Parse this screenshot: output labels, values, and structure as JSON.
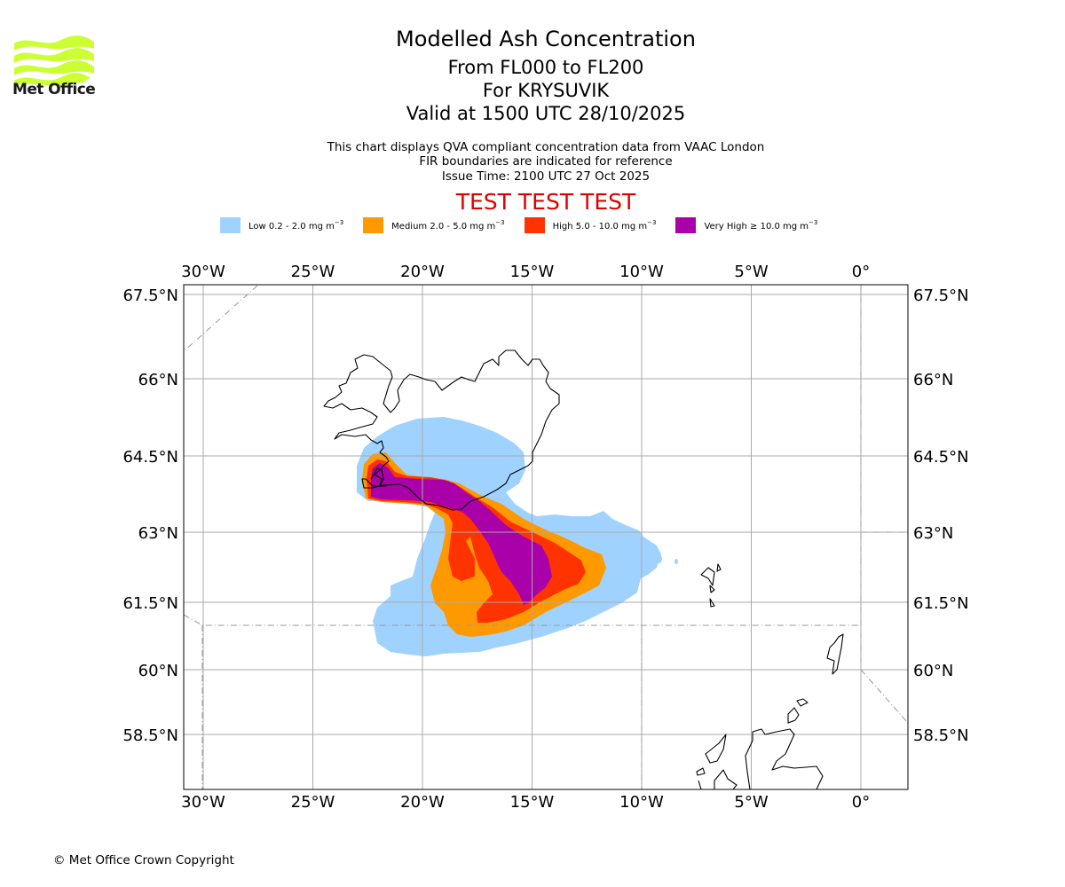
{
  "logo": {
    "icon": "met-office-wave-logo-icon",
    "text": "Met Office",
    "color": "#ccff33"
  },
  "titles": {
    "main": "Modelled Ash Concentration",
    "flight_levels": "From FL000 to FL200",
    "volcano": "For KRYSUVIK",
    "valid": "Valid at 1500 UTC 28/10/2025"
  },
  "subtitles": {
    "line1": "This chart displays QVA compliant concentration data from VAAC London",
    "line2": "FIR boundaries are indicated for reference",
    "line3": "Issue Time: 2100 UTC 27 Oct 2025"
  },
  "banner": {
    "text": "TEST TEST TEST",
    "color": "#e00000"
  },
  "legend": [
    {
      "label": "Low 0.2 - 2.0 mg m",
      "exp": "−3",
      "color": "#a0d2ff"
    },
    {
      "label": "Medium 2.0 - 5.0 mg m",
      "exp": "−3",
      "color": "#ff9900"
    },
    {
      "label": "High 5.0 - 10.0 mg m",
      "exp": "−3",
      "color": "#ff3300"
    },
    {
      "label": "Very High  ≥  10.0 mg m",
      "exp": "−3",
      "color": "#aa00aa"
    }
  ],
  "map": {
    "extent": {
      "lon": [
        -30.85,
        2.1
      ],
      "lat": [
        56.9,
        67.7
      ]
    },
    "lon_ticks": [
      {
        "value": -30,
        "label": "30°W"
      },
      {
        "value": -25,
        "label": "25°W"
      },
      {
        "value": -20,
        "label": "20°W"
      },
      {
        "value": -15,
        "label": "15°W"
      },
      {
        "value": -10,
        "label": "10°W"
      },
      {
        "value": -5,
        "label": "5°W"
      },
      {
        "value": 0,
        "label": "0°"
      }
    ],
    "lat_ticks": [
      {
        "value": 67.5,
        "label": "67.5°N"
      },
      {
        "value": 66,
        "label": "66°N"
      },
      {
        "value": 64.5,
        "label": "64.5°N"
      },
      {
        "value": 63,
        "label": "63°N"
      },
      {
        "value": 61.5,
        "label": "61.5°N"
      },
      {
        "value": 60,
        "label": "60°N"
      },
      {
        "value": 58.5,
        "label": "58.5°N"
      }
    ],
    "gridline_color": "#aaaaaa",
    "fir_color": "#999999",
    "coast_color": "#000000"
  },
  "copyright": "© Met Office Crown Copyright"
}
